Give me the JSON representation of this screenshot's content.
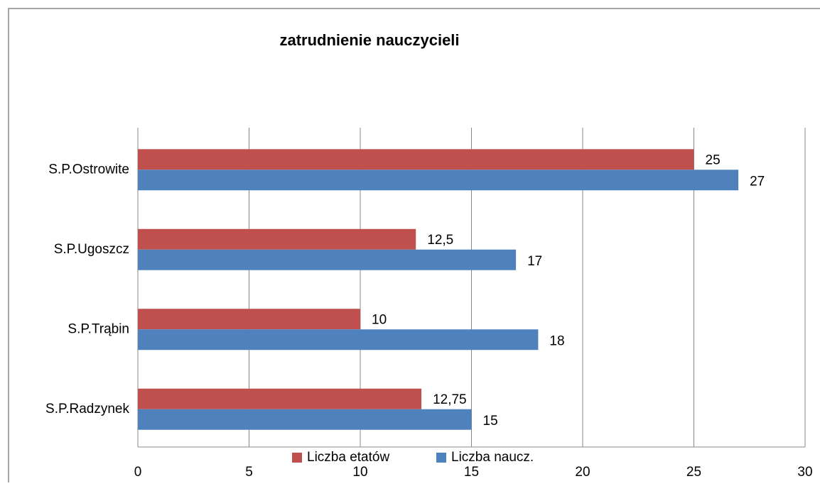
{
  "chart_data": {
    "type": "bar",
    "orientation": "horizontal",
    "title": "zatrudnienie nauczycieli",
    "categories": [
      "S.P.Ostrowite",
      "S.P.Ugoszcz",
      "S.P.Trąbin",
      "S.P.Radzynek"
    ],
    "series": [
      {
        "name": "Liczba etatów",
        "color": "#c0504d",
        "values": [
          25,
          12.5,
          10,
          12.75
        ],
        "value_labels": [
          "25",
          "12,5",
          "10",
          "12,75"
        ]
      },
      {
        "name": "Liczba naucz.",
        "color": "#4f81bd",
        "values": [
          27,
          17,
          18,
          15
        ]
      }
    ],
    "xlim": [
      0,
      30
    ],
    "xticks": [
      0,
      5,
      10,
      15,
      20,
      25,
      30
    ],
    "grid": true,
    "legend": "bottom"
  }
}
